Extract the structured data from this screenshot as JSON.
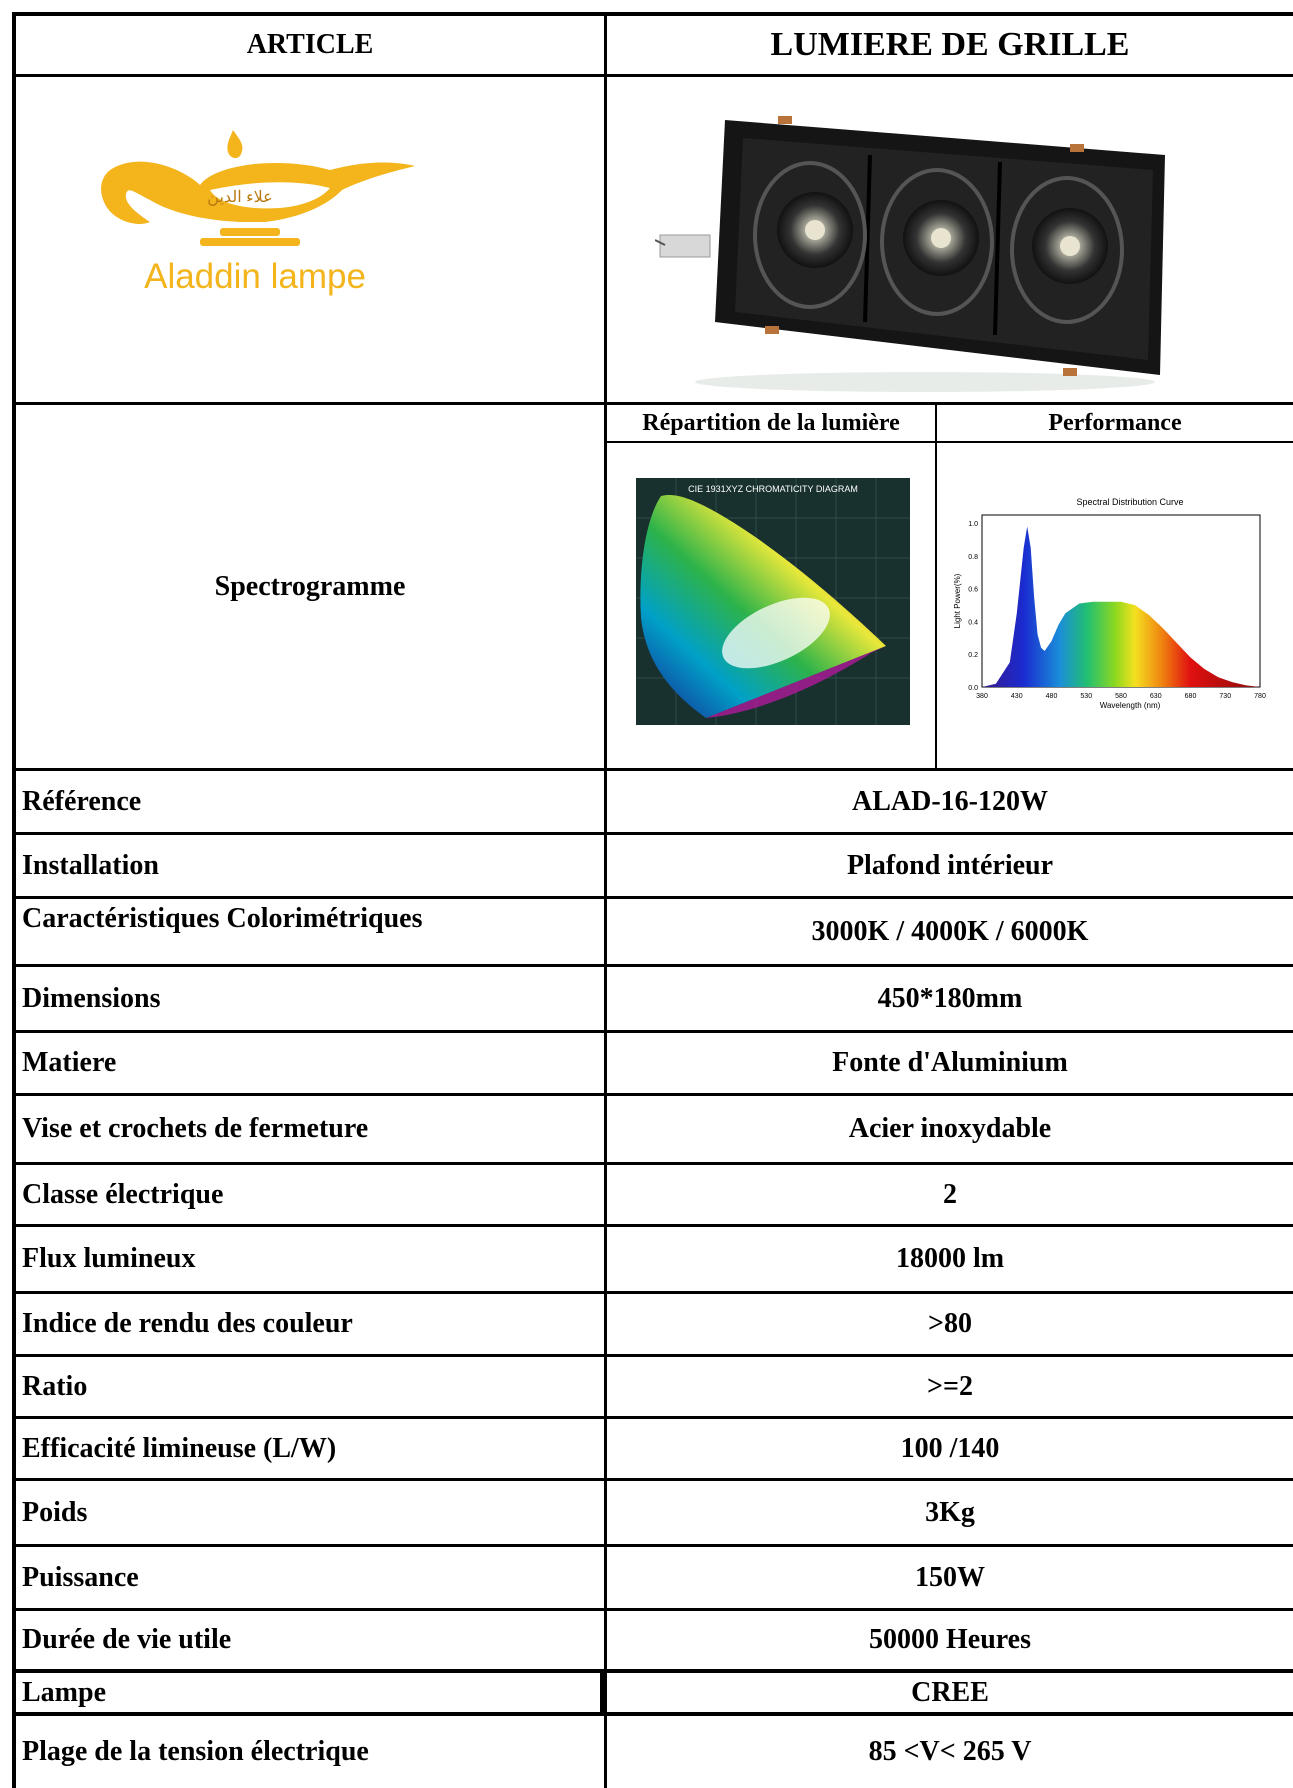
{
  "header": {
    "left": "ARTICLE",
    "right": "LUMIERE DE GRILLE"
  },
  "logo": {
    "arabic_text": "علاء الدين",
    "brand": "Aladdin lampe"
  },
  "spectro": {
    "label": "Spectrogramme",
    "col1_title": "Répartition de la lumière",
    "col2_title": "Performance",
    "cie_title": "CIE 1931XYZ CHROMATICITY DIAGRAM",
    "chart_data": {
      "type": "area",
      "title": "Spectral Distribution Curve",
      "xlabel": "Wavelength  (nm)",
      "ylabel": "Light Power(%)",
      "xlim": [
        380,
        780
      ],
      "ylim": [
        0,
        1.05
      ],
      "xticks": [
        "380",
        "430",
        "480",
        "530",
        "580",
        "630",
        "680",
        "730",
        "780"
      ],
      "yticks": [
        "0.0",
        "0.2",
        "0.4",
        "0.6",
        "0.8",
        "1.0"
      ],
      "x": [
        380,
        400,
        420,
        430,
        440,
        445,
        450,
        455,
        460,
        465,
        470,
        480,
        490,
        500,
        520,
        540,
        560,
        580,
        600,
        620,
        640,
        660,
        680,
        700,
        720,
        740,
        760,
        780
      ],
      "y": [
        0.0,
        0.02,
        0.15,
        0.45,
        0.85,
        0.98,
        0.85,
        0.55,
        0.32,
        0.24,
        0.22,
        0.28,
        0.38,
        0.45,
        0.51,
        0.52,
        0.52,
        0.52,
        0.5,
        0.44,
        0.36,
        0.27,
        0.18,
        0.11,
        0.06,
        0.03,
        0.01,
        0.0
      ]
    }
  },
  "rows": [
    {
      "label": "Référence",
      "value": "ALAD-16-120W"
    },
    {
      "label": "Installation",
      "value": "Plafond intérieur"
    },
    {
      "label": "Caractéristiques Colorimétriques",
      "value": "3000K / 4000K / 6000K"
    },
    {
      "label": "Dimensions",
      "value": "450*180mm"
    },
    {
      "label": "Matiere",
      "value": "Fonte d'Aluminium"
    },
    {
      "label": "Vise et crochets de fermeture",
      "value": "Acier inoxydable"
    },
    {
      "label": "Classe électrique",
      "value": "2"
    },
    {
      "label": "Flux lumineux",
      "value": "18000 lm"
    },
    {
      "label": "Indice de rendu des couleur",
      "value": ">80"
    },
    {
      "label": "Ratio",
      "value": ">=2"
    },
    {
      "label": "Efficacité limineuse (L/W)",
      "value": "100 /140"
    },
    {
      "label": "Poids",
      "value": "3Kg"
    },
    {
      "label": "Puissance",
      "value": "150W"
    },
    {
      "label": "Durée de vie utile",
      "value": "50000 Heures"
    },
    {
      "label": "Lampe",
      "value": "CREE"
    },
    {
      "label": "Plage de la tension électrique",
      "value": "85 <V< 265 V"
    }
  ]
}
